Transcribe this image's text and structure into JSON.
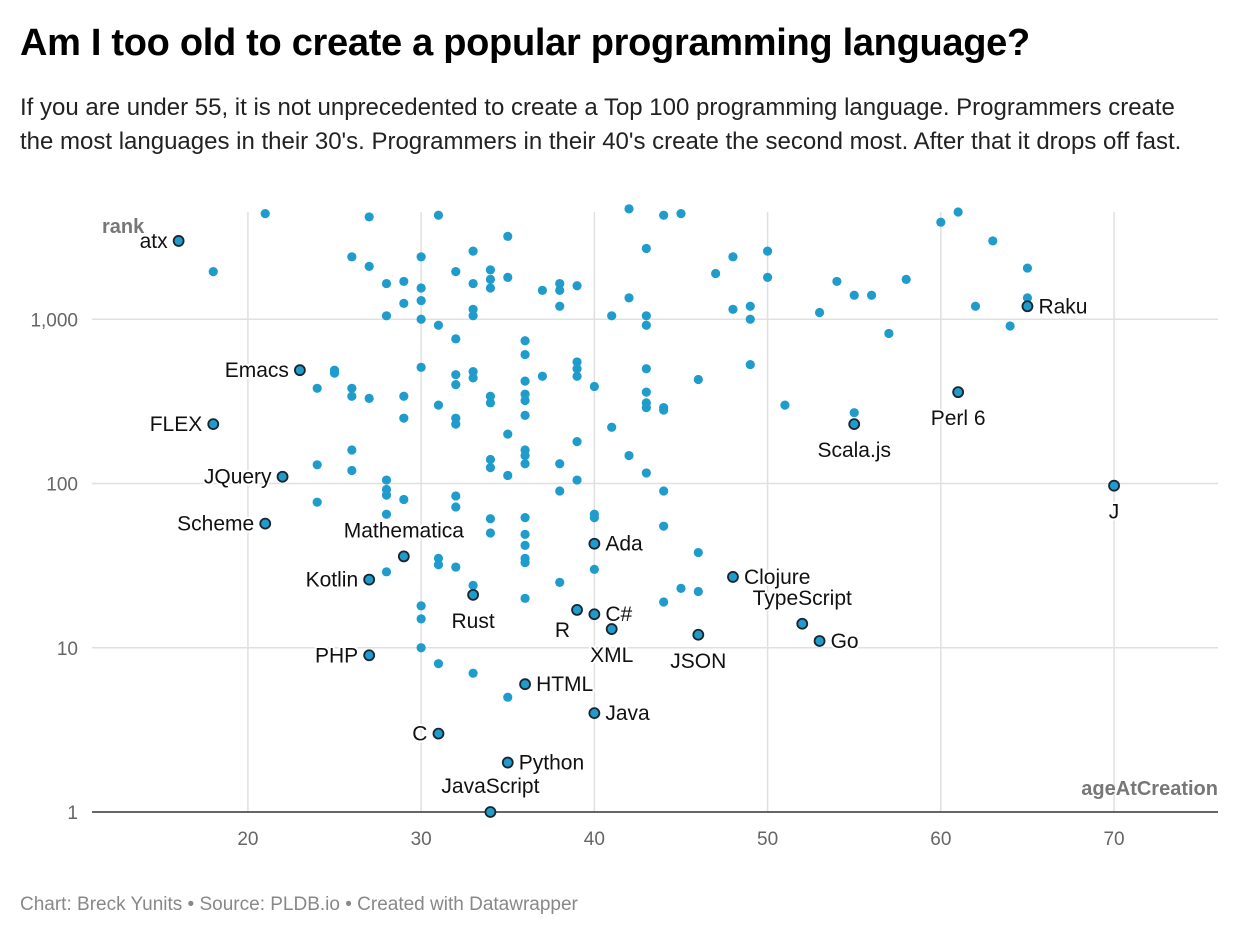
{
  "header": {
    "title": "Am I too old to create a popular programming language?",
    "subtitle": "If you are under 55, it is not unprecedented to create a Top 100 programming language. Programmers create the most languages in their 30's. Programmers in their 40's create the second most. After that it drops off fast."
  },
  "footer": {
    "text": "Chart: Breck Yunits • Source: PLDB.io • Created with Datawrapper"
  },
  "colors": {
    "dot": "#1f9ccc",
    "highlight_stroke": "#1a2530",
    "grid": "#e0e0e0",
    "axis": "#333333"
  },
  "chart_data": {
    "type": "scatter",
    "xlabel": "ageAtCreation",
    "ylabel": "rank",
    "xlim": [
      11,
      76
    ],
    "ylim": [
      1,
      4500
    ],
    "yscale": "log",
    "xticks": [
      "20",
      "30",
      "40",
      "50",
      "60",
      "70"
    ],
    "yticks": [
      "1",
      "10",
      "100",
      "1,000"
    ],
    "grid": true,
    "labeled_points": [
      {
        "name": "atx",
        "x": 16,
        "y": 3000,
        "pos": "left"
      },
      {
        "name": "Emacs",
        "x": 23,
        "y": 490,
        "pos": "left"
      },
      {
        "name": "FLEX",
        "x": 18,
        "y": 230,
        "pos": "left"
      },
      {
        "name": "JQuery",
        "x": 22,
        "y": 110,
        "pos": "left"
      },
      {
        "name": "Scheme",
        "x": 21,
        "y": 57,
        "pos": "left"
      },
      {
        "name": "Mathematica",
        "x": 29,
        "y": 36,
        "pos": "above"
      },
      {
        "name": "Kotlin",
        "x": 27,
        "y": 26,
        "pos": "left"
      },
      {
        "name": "Rust",
        "x": 33,
        "y": 21,
        "pos": "below"
      },
      {
        "name": "PHP",
        "x": 27,
        "y": 9,
        "pos": "left"
      },
      {
        "name": "C",
        "x": 31,
        "y": 3,
        "pos": "left"
      },
      {
        "name": "Python",
        "x": 35,
        "y": 2,
        "pos": "right"
      },
      {
        "name": "JavaScript",
        "x": 34,
        "y": 1,
        "pos": "above"
      },
      {
        "name": "HTML",
        "x": 36,
        "y": 6,
        "pos": "right"
      },
      {
        "name": "Java",
        "x": 40,
        "y": 4,
        "pos": "right"
      },
      {
        "name": "Ada",
        "x": 40,
        "y": 43,
        "pos": "right"
      },
      {
        "name": "R",
        "x": 39,
        "y": 17,
        "pos": "belowleft"
      },
      {
        "name": "C#",
        "x": 40,
        "y": 16,
        "pos": "right"
      },
      {
        "name": "XML",
        "x": 41,
        "y": 13,
        "pos": "below"
      },
      {
        "name": "JSON",
        "x": 46,
        "y": 12,
        "pos": "below"
      },
      {
        "name": "Clojure",
        "x": 48,
        "y": 27,
        "pos": "right"
      },
      {
        "name": "TypeScript",
        "x": 52,
        "y": 14,
        "pos": "above"
      },
      {
        "name": "Go",
        "x": 53,
        "y": 11,
        "pos": "right"
      },
      {
        "name": "Scala.js",
        "x": 55,
        "y": 230,
        "pos": "below"
      },
      {
        "name": "Perl 6",
        "x": 61,
        "y": 360,
        "pos": "below"
      },
      {
        "name": "Raku",
        "x": 65,
        "y": 1200,
        "pos": "right"
      },
      {
        "name": "J",
        "x": 70,
        "y": 97,
        "pos": "below"
      }
    ],
    "points": [
      [
        18,
        1950
      ],
      [
        21,
        4400
      ],
      [
        26,
        2400
      ],
      [
        27,
        2100
      ],
      [
        27,
        4200
      ],
      [
        28,
        1650
      ],
      [
        28,
        1050
      ],
      [
        29,
        1700
      ],
      [
        29,
        1250
      ],
      [
        30,
        2400
      ],
      [
        30,
        1550
      ],
      [
        30,
        1300
      ],
      [
        30,
        1000
      ],
      [
        31,
        4300
      ],
      [
        31,
        920
      ],
      [
        32,
        1950
      ],
      [
        32,
        760
      ],
      [
        33,
        2600
      ],
      [
        33,
        1650
      ],
      [
        33,
        1150
      ],
      [
        33,
        1050
      ],
      [
        34,
        2000
      ],
      [
        34,
        1750
      ],
      [
        34,
        1550
      ],
      [
        35,
        3200
      ],
      [
        35,
        1800
      ],
      [
        36,
        740
      ],
      [
        36,
        610
      ],
      [
        37,
        1500
      ],
      [
        38,
        1650
      ],
      [
        38,
        1500
      ],
      [
        38,
        1200
      ],
      [
        39,
        1600
      ],
      [
        41,
        1050
      ],
      [
        42,
        4700
      ],
      [
        42,
        1350
      ],
      [
        43,
        2700
      ],
      [
        43,
        1050
      ],
      [
        43,
        920
      ],
      [
        44,
        4300
      ],
      [
        45,
        4400
      ],
      [
        47,
        1900
      ],
      [
        48,
        2400
      ],
      [
        48,
        1150
      ],
      [
        49,
        1200
      ],
      [
        49,
        1000
      ],
      [
        50,
        2600
      ],
      [
        50,
        1800
      ],
      [
        53,
        1100
      ],
      [
        54,
        1700
      ],
      [
        55,
        1400
      ],
      [
        56,
        1400
      ],
      [
        57,
        820
      ],
      [
        58,
        1750
      ],
      [
        60,
        3900
      ],
      [
        61,
        4500
      ],
      [
        62,
        1200
      ],
      [
        63,
        3000
      ],
      [
        64,
        910
      ],
      [
        65,
        2050
      ],
      [
        65,
        1350
      ],
      [
        24,
        380
      ],
      [
        25,
        490
      ],
      [
        25,
        470
      ],
      [
        26,
        380
      ],
      [
        26,
        340
      ],
      [
        27,
        330
      ],
      [
        29,
        340
      ],
      [
        29,
        250
      ],
      [
        30,
        510
      ],
      [
        31,
        300
      ],
      [
        32,
        460
      ],
      [
        32,
        400
      ],
      [
        32,
        250
      ],
      [
        32,
        230
      ],
      [
        33,
        480
      ],
      [
        33,
        440
      ],
      [
        34,
        340
      ],
      [
        34,
        310
      ],
      [
        35,
        200
      ],
      [
        36,
        420
      ],
      [
        36,
        350
      ],
      [
        36,
        320
      ],
      [
        36,
        260
      ],
      [
        37,
        450
      ],
      [
        39,
        550
      ],
      [
        39,
        500
      ],
      [
        39,
        450
      ],
      [
        40,
        390
      ],
      [
        41,
        220
      ],
      [
        43,
        500
      ],
      [
        43,
        360
      ],
      [
        43,
        310
      ],
      [
        43,
        290
      ],
      [
        44,
        290
      ],
      [
        44,
        280
      ],
      [
        46,
        430
      ],
      [
        49,
        530
      ],
      [
        51,
        300
      ],
      [
        55,
        270
      ],
      [
        24,
        130
      ],
      [
        24,
        77
      ],
      [
        26,
        160
      ],
      [
        26,
        120
      ],
      [
        28,
        105
      ],
      [
        28,
        92
      ],
      [
        28,
        85
      ],
      [
        28,
        65
      ],
      [
        29,
        80
      ],
      [
        32,
        84
      ],
      [
        32,
        72
      ],
      [
        34,
        140
      ],
      [
        34,
        125
      ],
      [
        35,
        112
      ],
      [
        36,
        160
      ],
      [
        36,
        148
      ],
      [
        36,
        132
      ],
      [
        38,
        132
      ],
      [
        38,
        90
      ],
      [
        39,
        180
      ],
      [
        39,
        105
      ],
      [
        42,
        148
      ],
      [
        43,
        116
      ],
      [
        44,
        90
      ],
      [
        28,
        29
      ],
      [
        30,
        18
      ],
      [
        30,
        15
      ],
      [
        30,
        10
      ],
      [
        31,
        35
      ],
      [
        31,
        32
      ],
      [
        31,
        8
      ],
      [
        32,
        31
      ],
      [
        33,
        24
      ],
      [
        33,
        7
      ],
      [
        34,
        61
      ],
      [
        34,
        50
      ],
      [
        35,
        5
      ],
      [
        36,
        62
      ],
      [
        36,
        49
      ],
      [
        36,
        42
      ],
      [
        36,
        35
      ],
      [
        36,
        33
      ],
      [
        36,
        20
      ],
      [
        38,
        25
      ],
      [
        40,
        65
      ],
      [
        40,
        62
      ],
      [
        40,
        30
      ],
      [
        44,
        55
      ],
      [
        44,
        19
      ],
      [
        45,
        23
      ],
      [
        46,
        38
      ],
      [
        46,
        22
      ]
    ]
  }
}
